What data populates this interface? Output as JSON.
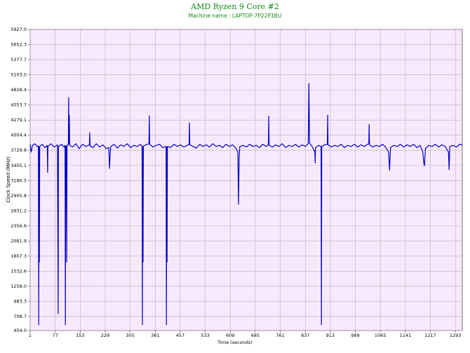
{
  "chart_data": {
    "type": "line",
    "title": "AMD Ryzen 9 Core #2",
    "subtitle": "Machine name : LAPTOP-7P22P1BU",
    "x_label": "Time (seconds)",
    "y_label": "Clock Speed (MHz)",
    "grid": true,
    "xlim": [
      1,
      1314
    ],
    "xticks": [
      1,
      77,
      153,
      229,
      305,
      381,
      457,
      533,
      609,
      685,
      761,
      837,
      913,
      989,
      1065,
      1141,
      1217,
      1293
    ],
    "ylim": [
      454,
      5927
    ],
    "yticks": [
      {
        "value": 454,
        "label": "454.0"
      },
      708.7,
      983.3,
      {
        "value": 1258,
        "label": "1258.0"
      },
      1532.6,
      1807.3,
      2081.9,
      2356.6,
      2631.2,
      2905.8,
      3180.5,
      3455.1,
      3729.8,
      4004.4,
      4279.1,
      4553.7,
      4828.4,
      {
        "value": 5103,
        "label": "5103.0"
      },
      5377.7,
      5652.3,
      {
        "value": 5927,
        "label": "5927.0"
      }
    ],
    "series": [
      {
        "name": "AMD Ryzen 9 Core #2",
        "color": "#0000cc",
        "x": [
          1,
          4,
          8,
          15,
          22,
          26,
          27,
          28,
          29,
          30,
          38,
          46,
          53,
          54,
          55,
          64,
          74,
          84,
          86,
          87,
          96,
          104,
          107,
          108,
          109,
          111,
          112,
          113,
          117,
          118,
          119,
          120,
          121,
          130,
          140,
          150,
          160,
          170,
          181,
          182,
          183,
          192,
          202,
          212,
          222,
          232,
          240,
          242,
          244,
          246,
          256,
          266,
          276,
          286,
          296,
          306,
          316,
          326,
          336,
          341,
          342,
          343,
          344,
          345,
          354,
          362,
          363,
          364,
          374,
          384,
          394,
          404,
          414,
          415,
          416,
          417,
          418,
          428,
          438,
          448,
          458,
          468,
          478,
          484,
          485,
          486,
          496,
          506,
          516,
          526,
          536,
          546,
          556,
          566,
          576,
          586,
          596,
          606,
          616,
          626,
          632,
          634,
          636,
          638,
          648,
          658,
          668,
          678,
          688,
          698,
          708,
          718,
          725,
          726,
          727,
          737,
          747,
          757,
          767,
          777,
          787,
          797,
          807,
          817,
          827,
          837,
          846,
          848,
          850,
          858,
          866,
          867,
          868,
          878,
          885,
          886,
          887,
          895,
          904,
          905,
          906,
          916,
          926,
          936,
          946,
          956,
          966,
          976,
          986,
          996,
          1006,
          1016,
          1026,
          1030,
          1031,
          1032,
          1042,
          1052,
          1062,
          1072,
          1082,
          1090,
          1093,
          1096,
          1106,
          1116,
          1126,
          1136,
          1146,
          1156,
          1166,
          1176,
          1186,
          1194,
          1197,
          1199,
          1202,
          1212,
          1222,
          1232,
          1242,
          1252,
          1262,
          1272,
          1274,
          1276,
          1286,
          1296,
          1306,
          1314
        ],
        "values": [
          3840,
          3700,
          3820,
          3850,
          3800,
          3810,
          560,
          3790,
          1700,
          3800,
          3840,
          3780,
          3820,
          3330,
          3800,
          3850,
          3790,
          3830,
          760,
          3800,
          3840,
          3790,
          3820,
          560,
          3800,
          3810,
          1700,
          3820,
          3830,
          4690,
          3850,
          4360,
          3820,
          3790,
          3850,
          3760,
          3840,
          3800,
          3830,
          4050,
          3810,
          3780,
          3850,
          3790,
          3830,
          3760,
          3780,
          3400,
          3650,
          3800,
          3840,
          3770,
          3830,
          3800,
          3850,
          3780,
          3820,
          3800,
          3840,
          3800,
          560,
          3790,
          1700,
          3810,
          3830,
          3850,
          4360,
          3840,
          3790,
          3820,
          3840,
          3780,
          3800,
          560,
          3790,
          1700,
          3800,
          3780,
          3840,
          3800,
          3830,
          3790,
          3820,
          3840,
          4230,
          3830,
          3800,
          3770,
          3840,
          3800,
          3830,
          3790,
          3850,
          3800,
          3820,
          3780,
          3840,
          3800,
          3830,
          3770,
          3700,
          2750,
          3600,
          3800,
          3820,
          3790,
          3840,
          3800,
          3820,
          3780,
          3840,
          3800,
          3830,
          4350,
          3820,
          3790,
          3830,
          3800,
          3850,
          3780,
          3820,
          3800,
          3840,
          3790,
          3830,
          3800,
          3850,
          4945,
          3860,
          3800,
          3700,
          3500,
          3780,
          3820,
          3800,
          560,
          3790,
          3830,
          3840,
          4370,
          3830,
          3790,
          3820,
          3800,
          3840,
          3780,
          3820,
          3800,
          3840,
          3790,
          3830,
          3800,
          3840,
          3850,
          4200,
          3830,
          3790,
          3820,
          3800,
          3840,
          3780,
          3700,
          3370,
          3780,
          3820,
          3800,
          3840,
          3790,
          3830,
          3800,
          3840,
          3780,
          3820,
          3700,
          3500,
          3450,
          3760,
          3820,
          3800,
          3840,
          3790,
          3830,
          3800,
          3700,
          3380,
          3800,
          3820,
          3790,
          3840,
          3830
        ]
      }
    ]
  }
}
